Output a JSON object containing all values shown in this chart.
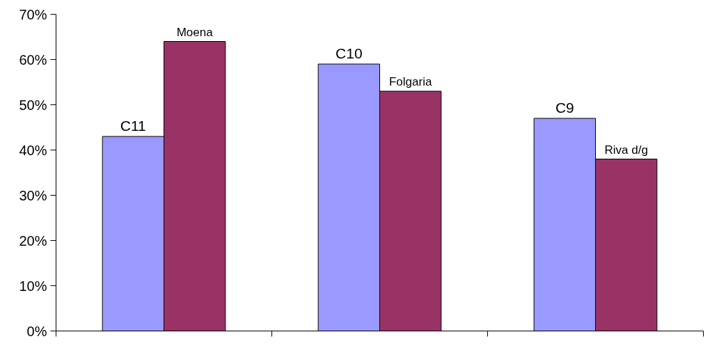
{
  "chart_data": {
    "type": "bar",
    "categories": [
      null,
      null,
      null
    ],
    "series": [
      {
        "color": "#9999ff",
        "values": [
          43,
          59,
          47
        ],
        "value_labels": [
          "C11",
          "C10",
          "C9"
        ]
      },
      {
        "color": "#993366",
        "values": [
          64,
          53,
          38
        ],
        "value_labels": [
          "Moena",
          "Folgaria",
          "Riva d/g"
        ]
      }
    ],
    "ylim": [
      0,
      70
    ],
    "yticks": [
      {
        "value": 0,
        "label": "0%"
      },
      {
        "value": 10,
        "label": "10%"
      },
      {
        "value": 20,
        "label": "20%"
      },
      {
        "value": 30,
        "label": "30%"
      },
      {
        "value": 40,
        "label": "40%"
      },
      {
        "value": 50,
        "label": "50%"
      },
      {
        "value": 60,
        "label": "60%"
      },
      {
        "value": 70,
        "label": "70%"
      }
    ],
    "tick_labels": "y",
    "grid": false
  }
}
